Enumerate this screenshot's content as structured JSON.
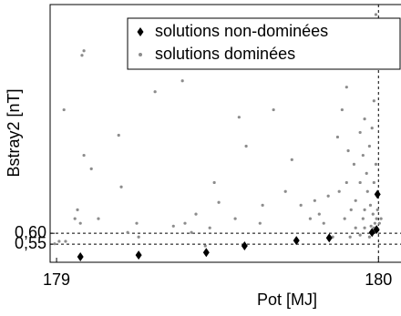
{
  "chart_data": {
    "type": "scatter",
    "x_label": "Pot [MJ]",
    "y_label": "Bstray2 [nT]",
    "xlim": [
      178.98,
      180.07
    ],
    "ylim": [
      0.467,
      1.65
    ],
    "xticks": [
      179,
      180
    ],
    "yticks": [
      {
        "value": 0.55,
        "label": "0,55"
      },
      {
        "value": 0.6,
        "label": "0,60"
      }
    ],
    "grid": "y",
    "grid_style": "dashed",
    "x_reference": 180,
    "legend": "top-right",
    "series": [
      {
        "name": "solutions non-dominées",
        "color": "#000000",
        "marker": "diamond",
        "x": [
          179.074,
          179.255,
          179.465,
          179.584,
          179.745,
          179.847,
          179.98,
          179.994,
          179.997
        ],
        "values": [
          0.492,
          0.5,
          0.512,
          0.542,
          0.567,
          0.579,
          0.604,
          0.617,
          0.779
        ]
      },
      {
        "name": "solutions dominées",
        "color": "#8c8c8c",
        "marker": "dot",
        "x": [
          179.079,
          179.085,
          179.023,
          179.085,
          179.108,
          179.065,
          179.057,
          179.074,
          179.008,
          178.994,
          179.028,
          179.13,
          179.193,
          179.201,
          179.221,
          179.249,
          179.255,
          179.306,
          179.363,
          179.391,
          179.399,
          179.419,
          179.433,
          179.476,
          179.462,
          179.49,
          179.504,
          179.567,
          179.555,
          179.589,
          179.632,
          179.64,
          179.674,
          179.731,
          179.711,
          179.759,
          179.788,
          179.816,
          179.802,
          179.873,
          179.887,
          179.901,
          179.906,
          179.924,
          179.929,
          179.943,
          179.952,
          179.957,
          179.963,
          179.972,
          179.98,
          179.972,
          179.986,
          179.992,
          179.957,
          179.943,
          179.952,
          179.966,
          179.975,
          179.983,
          179.989,
          179.994,
          179.901,
          179.915,
          179.929,
          179.895,
          179.878,
          179.844,
          179.83,
          179.858,
          179.912,
          179.943,
          179.957,
          179.986,
          179.992,
          179.997,
          180.003,
          180.008,
          179.986,
          179.977
        ],
        "values": [
          1.417,
          1.438,
          1.167,
          0.958,
          0.896,
          0.708,
          0.667,
          0.646,
          0.563,
          0.552,
          0.563,
          0.667,
          1.05,
          0.813,
          0.604,
          0.646,
          0.583,
          1.25,
          0.633,
          1.3,
          0.646,
          0.604,
          0.688,
          0.625,
          0.542,
          0.833,
          0.742,
          1.133,
          0.667,
          1.0,
          0.646,
          0.729,
          1.167,
          0.938,
          0.792,
          0.729,
          0.667,
          0.688,
          0.75,
          1.042,
          1.167,
          1.271,
          0.979,
          0.917,
          0.75,
          0.833,
          0.667,
          0.708,
          0.875,
          1.0,
          1.083,
          0.583,
          1.208,
          1.604,
          1.125,
          1.063,
          0.958,
          0.792,
          0.729,
          0.688,
          0.646,
          0.667,
          0.833,
          0.708,
          0.625,
          0.667,
          0.792,
          0.771,
          0.646,
          0.583,
          0.583,
          0.592,
          0.625,
          0.833,
          0.917,
          0.708,
          0.646,
          0.667,
          0.625,
          0.633
        ]
      }
    ]
  }
}
